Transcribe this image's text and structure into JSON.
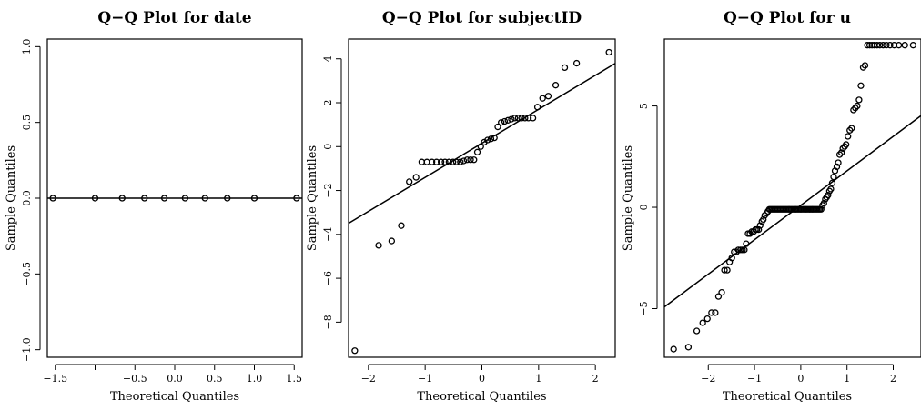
{
  "chart_data": [
    {
      "type": "scatter",
      "title": "Q−Q Plot for date",
      "xlabel": "Theoretical Quantiles",
      "ylabel": "Sample Quantiles",
      "xlim": [
        -1.6,
        1.6
      ],
      "ylim": [
        -1.05,
        1.05
      ],
      "xticks": [
        -1.5,
        -0.5,
        0,
        0.5,
        1,
        1.5
      ],
      "xtick_labels": [
        "−1.5",
        "−0.5",
        "0.0",
        "0.5",
        "1.0",
        "1.5"
      ],
      "xticks_unlabeled": [
        -1.0
      ],
      "yticks": [
        -1,
        -0.5,
        0,
        0.5,
        1
      ],
      "ytick_labels": [
        "−1.0",
        "−0.5",
        "0.0",
        "0.5",
        "1.0"
      ],
      "ref_line": {
        "slope": 0,
        "intercept": 0
      },
      "points": {
        "x": [
          -1.53,
          -1.0,
          -0.66,
          -0.38,
          -0.13,
          0.13,
          0.38,
          0.66,
          1.0,
          1.53
        ],
        "y": [
          0,
          0,
          0,
          0,
          0,
          0,
          0,
          0,
          0,
          0
        ]
      }
    },
    {
      "type": "scatter",
      "title": "Q−Q Plot for subjectID",
      "xlabel": "Theoretical Quantiles",
      "ylabel": "Sample Quantiles",
      "xlim": [
        -2.35,
        2.35
      ],
      "ylim": [
        -9.6,
        4.9
      ],
      "xticks": [
        -2,
        -1,
        0,
        1,
        2
      ],
      "xtick_labels": [
        "−2",
        "−1",
        "0",
        "1",
        "2"
      ],
      "yticks": [
        -8,
        -6,
        -4,
        -2,
        0,
        2,
        4
      ],
      "ytick_labels": [
        "−8",
        "−6",
        "−4",
        "−2",
        "0",
        "2",
        "4"
      ],
      "ref_line": {
        "slope": 1.55,
        "intercept": 0.15
      },
      "points": {
        "x": [
          -2.24,
          -1.82,
          -1.59,
          -1.42,
          -1.28,
          -1.16,
          -1.06,
          -0.97,
          -0.88,
          -0.8,
          -0.72,
          -0.65,
          -0.58,
          -0.51,
          -0.45,
          -0.38,
          -0.32,
          -0.26,
          -0.2,
          -0.14,
          -0.08,
          -0.02,
          0.04,
          0.1,
          0.16,
          0.22,
          0.28,
          0.34,
          0.4,
          0.46,
          0.52,
          0.58,
          0.64,
          0.7,
          0.76,
          0.82,
          0.9,
          0.98,
          1.07,
          1.17,
          1.3,
          1.46,
          1.67,
          2.24
        ],
        "y": [
          -9.3,
          -4.5,
          -4.3,
          -3.6,
          -1.6,
          -1.4,
          -0.7,
          -0.7,
          -0.7,
          -0.7,
          -0.7,
          -0.7,
          -0.7,
          -0.7,
          -0.7,
          -0.7,
          -0.65,
          -0.6,
          -0.6,
          -0.6,
          -0.25,
          0.0,
          0.2,
          0.3,
          0.35,
          0.4,
          0.9,
          1.1,
          1.15,
          1.2,
          1.25,
          1.3,
          1.3,
          1.3,
          1.3,
          1.3,
          1.3,
          1.8,
          2.2,
          2.3,
          2.8,
          3.6,
          3.8,
          4.3
        ]
      }
    },
    {
      "type": "scatter",
      "title": "Q−Q Plot for u",
      "xlabel": "Theoretical Quantiles",
      "ylabel": "Sample Quantiles",
      "xlim": [
        -2.95,
        2.6
      ],
      "ylim": [
        -7.4,
        8.3
      ],
      "xticks": [
        -2,
        -1,
        0,
        1,
        2
      ],
      "xtick_labels": [
        "−2",
        "−1",
        "0",
        "1",
        "2"
      ],
      "yticks": [
        -5,
        0,
        5
      ],
      "ytick_labels": [
        "−5",
        "0",
        "5"
      ],
      "ref_line": {
        "slope": 1.7,
        "intercept": 0.1
      },
      "points": {
        "x": [
          -2.75,
          -2.43,
          -2.25,
          -2.12,
          -2.02,
          -1.93,
          -1.85,
          -1.78,
          -1.71,
          -1.65,
          -1.59,
          -1.54,
          -1.49,
          -1.44,
          -1.39,
          -1.35,
          -1.3,
          -1.26,
          -1.22,
          -1.18,
          -1.14,
          -1.1,
          -1.06,
          -1.02,
          -0.98,
          -0.95,
          -0.91,
          -0.88,
          -0.84,
          -0.81,
          -0.78,
          -0.74,
          -0.71,
          -0.68,
          -0.65,
          -0.62,
          -0.59,
          -0.56,
          -0.53,
          -0.5,
          -0.47,
          -0.44,
          -0.41,
          -0.38,
          -0.35,
          -0.32,
          -0.29,
          -0.26,
          -0.24,
          -0.21,
          -0.18,
          -0.15,
          -0.12,
          -0.1,
          -0.07,
          -0.04,
          -0.01,
          0.01,
          0.04,
          0.07,
          0.1,
          0.12,
          0.15,
          0.18,
          0.21,
          0.24,
          0.26,
          0.29,
          0.32,
          0.35,
          0.38,
          0.41,
          0.44,
          0.47,
          0.5,
          0.53,
          0.56,
          0.59,
          0.62,
          0.65,
          0.68,
          0.71,
          0.74,
          0.78,
          0.81,
          0.84,
          0.88,
          0.91,
          0.95,
          0.98,
          1.02,
          1.06,
          1.1,
          1.14,
          1.18,
          1.22,
          1.26,
          1.3,
          1.35,
          1.39,
          1.44,
          1.49,
          1.54,
          1.59,
          1.65,
          1.71,
          1.78,
          1.85,
          1.93,
          2.02,
          2.12,
          2.25,
          2.43
        ],
        "y": [
          -7.0,
          -6.9,
          -6.1,
          -5.7,
          -5.5,
          -5.2,
          -5.2,
          -4.4,
          -4.2,
          -3.1,
          -3.1,
          -2.7,
          -2.5,
          -2.2,
          -2.2,
          -2.1,
          -2.1,
          -2.1,
          -2.1,
          -1.8,
          -1.3,
          -1.3,
          -1.2,
          -1.2,
          -1.1,
          -1.1,
          -1.1,
          -0.9,
          -0.7,
          -0.6,
          -0.4,
          -0.3,
          -0.2,
          -0.1,
          -0.1,
          -0.1,
          -0.1,
          -0.1,
          -0.1,
          -0.1,
          -0.1,
          -0.1,
          -0.1,
          -0.1,
          -0.1,
          -0.1,
          -0.1,
          -0.1,
          -0.1,
          -0.1,
          -0.1,
          -0.1,
          -0.1,
          -0.1,
          -0.1,
          -0.1,
          -0.1,
          -0.1,
          -0.1,
          -0.1,
          -0.1,
          -0.1,
          -0.1,
          -0.1,
          -0.1,
          -0.1,
          -0.1,
          -0.1,
          -0.1,
          -0.1,
          -0.1,
          -0.1,
          -0.1,
          0.1,
          0.2,
          0.4,
          0.5,
          0.6,
          0.8,
          0.9,
          1.2,
          1.5,
          1.8,
          2.0,
          2.2,
          2.6,
          2.7,
          2.9,
          3.0,
          3.1,
          3.5,
          3.8,
          3.9,
          4.8,
          4.9,
          5.0,
          5.3,
          6.0,
          6.9,
          7.0,
          8.0,
          8.0,
          8.0,
          8.0,
          8.0,
          8.0,
          8.0,
          8.0,
          8.0,
          8.0,
          8.0,
          8.0,
          8.0
        ]
      }
    }
  ]
}
